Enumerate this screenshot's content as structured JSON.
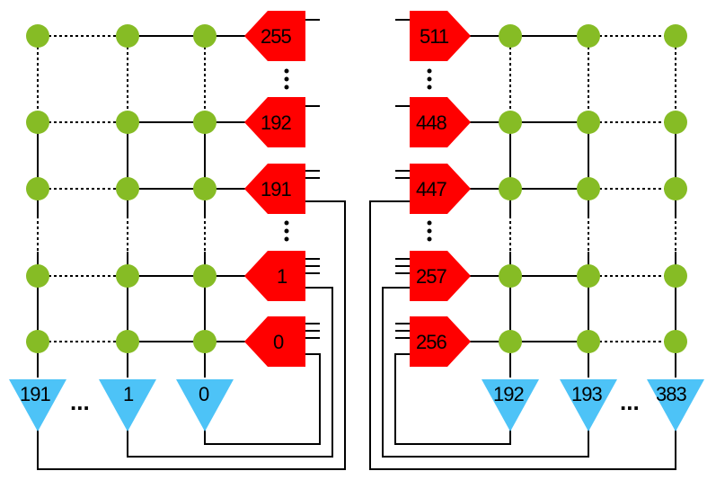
{
  "colors": {
    "node": "#86bc25",
    "port_red": "#ff0000",
    "port_blue": "#4dc3f7",
    "wire": "#000000"
  },
  "left": {
    "red_ports": [
      "255",
      "192",
      "191",
      "1",
      "0"
    ],
    "blue_ports": [
      "191",
      "1",
      "0"
    ],
    "blue_ellipsis": "..."
  },
  "right": {
    "red_ports": [
      "511",
      "448",
      "447",
      "257",
      "256"
    ],
    "blue_ports": [
      "192",
      "193",
      "383"
    ],
    "blue_ellipsis": "..."
  }
}
